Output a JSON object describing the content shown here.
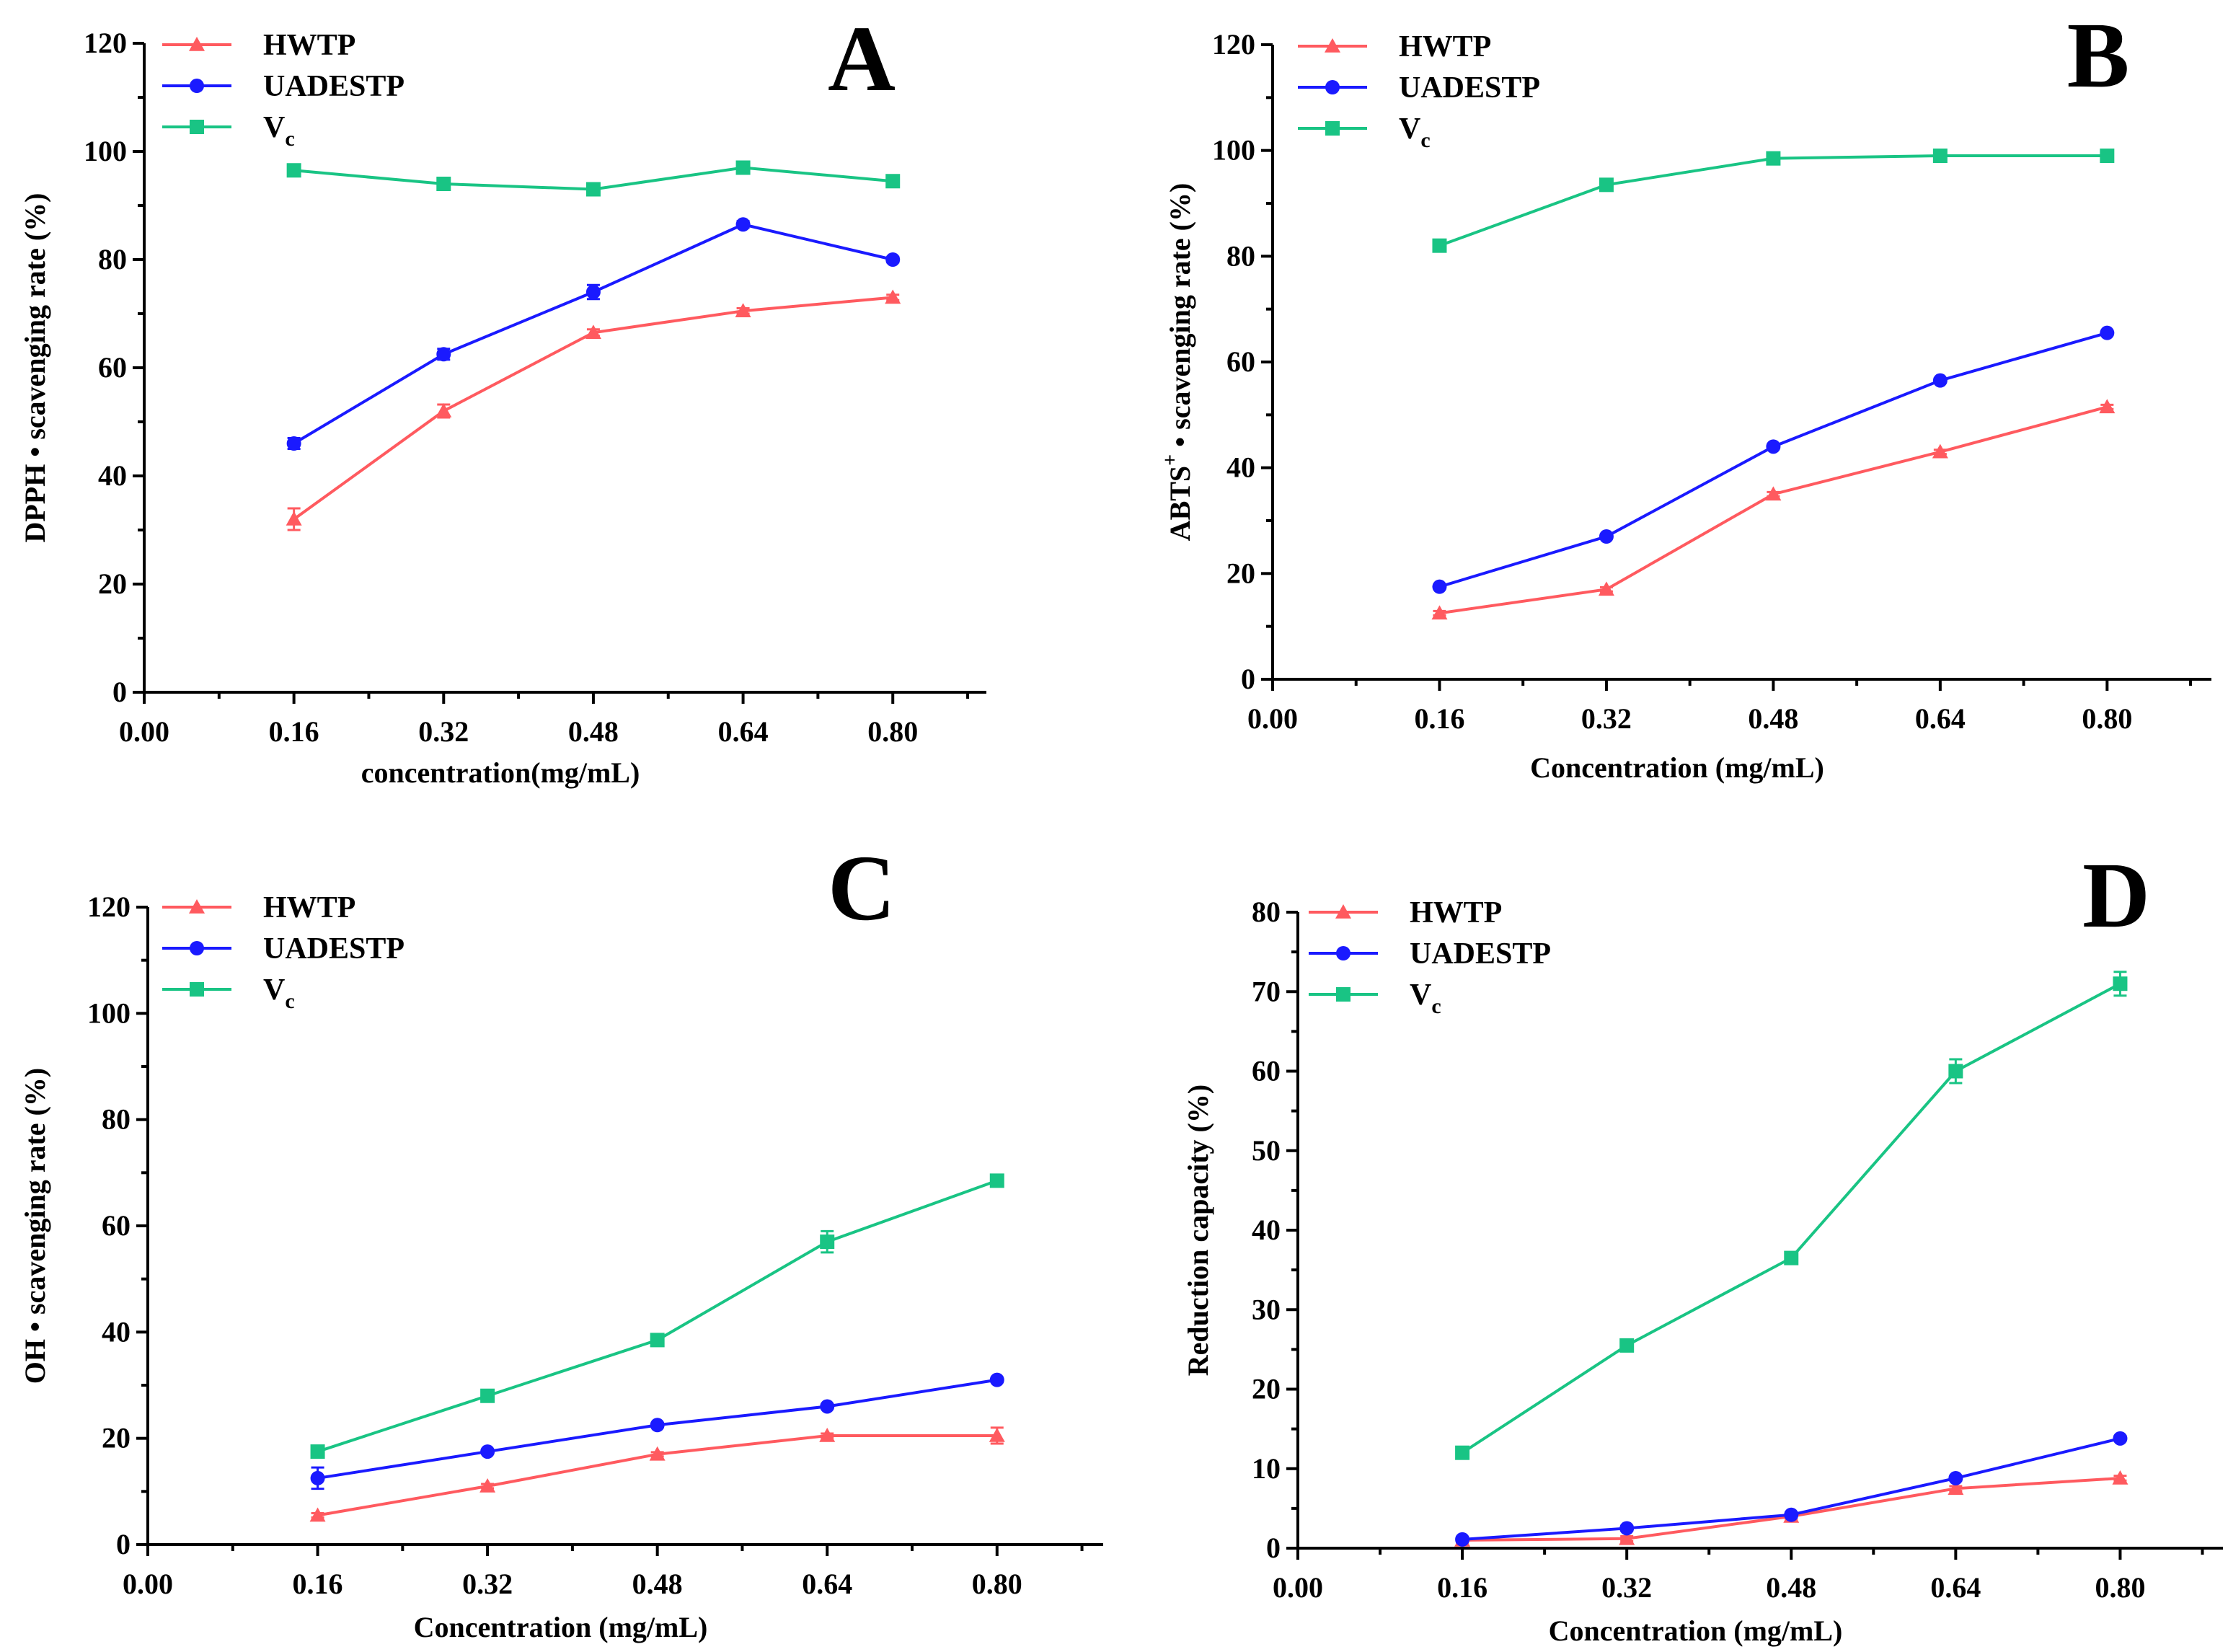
{
  "colors": {
    "HWTP": "#ff5a5f",
    "UADESTP": "#1a1aff",
    "Vc": "#19c484"
  },
  "chart_data": [
    {
      "type": "line",
      "panel": "A",
      "xlabel": "concentration(mg/mL)",
      "ylabel": "DPPH •  scavenging rate (%)",
      "ylabel_parts": [],
      "xlim": [
        0,
        0.9
      ],
      "ylim": [
        0,
        120
      ],
      "x_ticks": [
        "0.00",
        "0.16",
        "0.32",
        "0.48",
        "0.64",
        "0.80"
      ],
      "y_ticks": [
        "0",
        "20",
        "40",
        "60",
        "80",
        "100",
        "120"
      ],
      "legend_placement": "top-left",
      "x": [
        0.16,
        0.32,
        0.48,
        0.64,
        0.8
      ],
      "series": [
        {
          "name": "HWTP",
          "marker": "triangle",
          "values": [
            32,
            52,
            66.5,
            70.5,
            73
          ],
          "errors": [
            2,
            1.2,
            0.6,
            0.5,
            0.5
          ]
        },
        {
          "name": "UADESTP",
          "marker": "circle",
          "values": [
            46,
            62.5,
            74,
            86.5,
            80
          ],
          "errors": [
            1,
            1,
            1.3,
            0.6,
            0.5
          ]
        },
        {
          "name": "Vc",
          "marker": "square",
          "values": [
            96.5,
            94,
            93,
            97,
            94.5
          ],
          "errors": [
            0.5,
            0.5,
            0.5,
            0.5,
            0.5
          ]
        }
      ]
    },
    {
      "type": "line",
      "panel": "B",
      "xlabel": "Concentration (mg/mL)",
      "ylabel": "",
      "ylabel_parts": [
        "ABTS",
        "+",
        " •  scavenging rate (%)"
      ],
      "xlim": [
        0,
        0.9
      ],
      "ylim": [
        0,
        120
      ],
      "x_ticks": [
        "0.00",
        "0.16",
        "0.32",
        "0.48",
        "0.64",
        "0.80"
      ],
      "y_ticks": [
        "0",
        "20",
        "40",
        "60",
        "80",
        "100",
        "120"
      ],
      "legend_placement": "top-left",
      "x": [
        0.16,
        0.32,
        0.48,
        0.64,
        0.8
      ],
      "series": [
        {
          "name": "HWTP",
          "marker": "triangle",
          "values": [
            12.5,
            17,
            35,
            43,
            51.5
          ],
          "errors": [
            0.4,
            0.4,
            0.4,
            0.4,
            0.4
          ]
        },
        {
          "name": "UADESTP",
          "marker": "circle",
          "values": [
            17.5,
            27,
            44,
            56.5,
            65.5
          ],
          "errors": [
            0.4,
            0.4,
            0.4,
            0.4,
            0.4
          ]
        },
        {
          "name": "Vc",
          "marker": "square",
          "values": [
            82,
            93.5,
            98.5,
            99,
            99
          ],
          "errors": [
            0.4,
            0.4,
            0.4,
            0.4,
            0.4
          ]
        }
      ]
    },
    {
      "type": "line",
      "panel": "C",
      "xlabel": "Concentration (mg/mL)",
      "ylabel": "OH •  scavenging rate (%)",
      "ylabel_parts": [],
      "xlim": [
        0,
        0.9
      ],
      "ylim": [
        0,
        120
      ],
      "x_ticks": [
        "0.00",
        "0.16",
        "0.32",
        "0.48",
        "0.64",
        "0.80"
      ],
      "y_ticks": [
        "0",
        "20",
        "40",
        "60",
        "80",
        "100",
        "120"
      ],
      "legend_placement": "top-left",
      "x": [
        0.16,
        0.32,
        0.48,
        0.64,
        0.8
      ],
      "series": [
        {
          "name": "HWTP",
          "marker": "triangle",
          "values": [
            5.5,
            11,
            17,
            20.5,
            20.5
          ],
          "errors": [
            0.4,
            0.4,
            0.4,
            0.4,
            1.5
          ]
        },
        {
          "name": "UADESTP",
          "marker": "circle",
          "values": [
            12.5,
            17.5,
            22.5,
            26,
            31
          ],
          "errors": [
            2,
            0.4,
            0.4,
            0.4,
            0.4
          ]
        },
        {
          "name": "Vc",
          "marker": "square",
          "values": [
            17.5,
            28,
            38.5,
            57,
            68.5
          ],
          "errors": [
            0.4,
            0.4,
            0.4,
            2,
            0.4
          ]
        }
      ]
    },
    {
      "type": "line",
      "panel": "D",
      "xlabel": "Concentration (mg/mL)",
      "ylabel": "Reduction capacity (%)",
      "ylabel_parts": [],
      "xlim": [
        0,
        0.9
      ],
      "ylim": [
        0,
        80
      ],
      "x_ticks": [
        "0.00",
        "0.16",
        "0.32",
        "0.48",
        "0.64",
        "0.80"
      ],
      "y_ticks": [
        "0",
        "10",
        "20",
        "30",
        "40",
        "50",
        "60",
        "70",
        "80"
      ],
      "legend_placement": "top-left",
      "x": [
        0.16,
        0.32,
        0.48,
        0.64,
        0.8
      ],
      "series": [
        {
          "name": "HWTP",
          "marker": "triangle",
          "values": [
            1,
            1.2,
            4,
            7.5,
            8.8
          ],
          "errors": [
            0.3,
            0.3,
            0.3,
            0.3,
            0.3
          ]
        },
        {
          "name": "UADESTP",
          "marker": "circle",
          "values": [
            1.1,
            2.5,
            4.2,
            8.8,
            13.8
          ],
          "errors": [
            0.3,
            0.3,
            0.3,
            0.3,
            0.3
          ]
        },
        {
          "name": "Vc",
          "marker": "square",
          "values": [
            12,
            25.5,
            36.5,
            60,
            71
          ],
          "errors": [
            0.3,
            0.3,
            0.3,
            1.5,
            1.5
          ]
        }
      ]
    }
  ]
}
